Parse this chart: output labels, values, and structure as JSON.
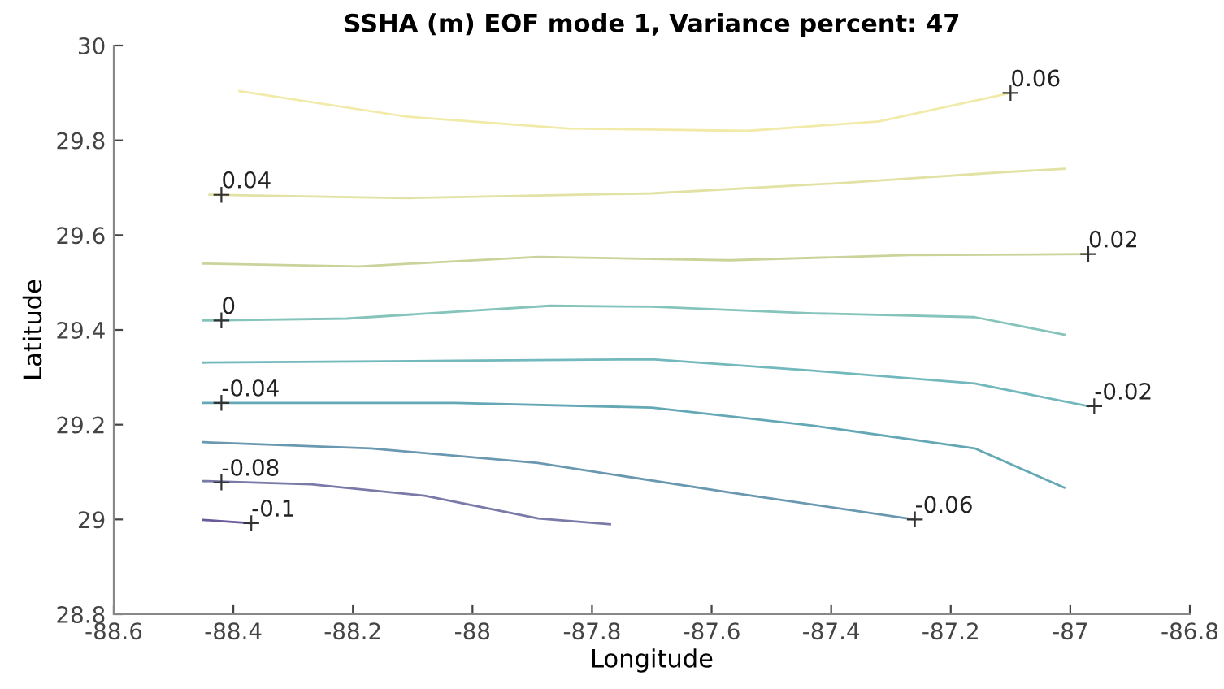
{
  "chart_data": {
    "type": "line",
    "title": "SSHA (m) EOF mode 1, Variance percent: 47",
    "xlabel": "Longitude",
    "ylabel": "Latitude",
    "xlim": [
      -88.6,
      -86.8
    ],
    "xticks": [
      -88.6,
      -88.4,
      -88.2,
      -88,
      -87.8,
      -87.6,
      -87.4,
      -87.2,
      -87,
      -86.8
    ],
    "ylim": [
      28.8,
      30
    ],
    "yticks": [
      28.8,
      29,
      29.2,
      29.4,
      29.6,
      29.8,
      30
    ],
    "grid": false,
    "line_style": "solid",
    "series": [
      {
        "color": "#f2eaa8",
        "x": [
          -88.39,
          -88.11,
          -87.84,
          -87.54,
          -87.32,
          -87.1
        ],
        "values": [
          29.904,
          29.85,
          29.825,
          29.82,
          29.84,
          29.9
        ]
      },
      {
        "color": "#e2e2a4",
        "x": [
          -88.44,
          -88.11,
          -87.7,
          -87.38,
          -87.11,
          -87.01
        ],
        "values": [
          29.685,
          29.678,
          29.688,
          29.71,
          29.733,
          29.74
        ]
      },
      {
        "color": "#c8d49a",
        "x": [
          -88.45,
          -88.19,
          -87.89,
          -87.57,
          -87.27,
          -86.97
        ],
        "values": [
          29.54,
          29.534,
          29.554,
          29.547,
          29.558,
          29.56
        ]
      },
      {
        "color": "#84c4ba",
        "x": [
          -88.45,
          -88.21,
          -87.87,
          -87.7,
          -87.43,
          -87.16,
          -87.01
        ],
        "values": [
          29.42,
          29.424,
          29.451,
          29.449,
          29.435,
          29.427,
          29.39
        ]
      },
      {
        "color": "#72b8bc",
        "x": [
          -88.45,
          -88.03,
          -87.7,
          -87.43,
          -87.16,
          -86.97
        ],
        "values": [
          29.331,
          29.335,
          29.338,
          29.314,
          29.287,
          29.239
        ]
      },
      {
        "color": "#64a8b6",
        "x": [
          -88.45,
          -88.03,
          -87.7,
          -87.43,
          -87.16,
          -87.01
        ],
        "values": [
          29.246,
          29.246,
          29.236,
          29.198,
          29.15,
          29.067
        ]
      },
      {
        "color": "#6a98b0",
        "x": [
          -88.45,
          -88.17,
          -87.89,
          -87.57,
          -87.26
        ],
        "values": [
          29.163,
          29.15,
          29.119,
          29.057,
          29.0
        ]
      },
      {
        "color": "#7a7aa8",
        "x": [
          -88.45,
          -88.27,
          -88.08,
          -87.89,
          -87.77
        ],
        "values": [
          29.081,
          29.074,
          29.05,
          29.002,
          28.99
        ]
      },
      {
        "color": "#6a5a9a",
        "x": [
          -88.45,
          -88.37
        ],
        "values": [
          28.999,
          28.992
        ]
      }
    ],
    "annotations": [
      {
        "text": "0.06",
        "x": -87.1,
        "y": 29.9
      },
      {
        "text": "0.04",
        "x": -88.42,
        "y": 29.685
      },
      {
        "text": "0.02",
        "x": -86.97,
        "y": 29.56
      },
      {
        "text": "0",
        "x": -88.42,
        "y": 29.42
      },
      {
        "text": "-0.04",
        "x": -88.42,
        "y": 29.246
      },
      {
        "text": "-0.02",
        "x": -86.96,
        "y": 29.239
      },
      {
        "text": "-0.08",
        "x": -88.42,
        "y": 29.078
      },
      {
        "text": "-0.1",
        "x": -88.37,
        "y": 28.992
      },
      {
        "text": "-0.06",
        "x": -87.26,
        "y": 29.0
      }
    ]
  }
}
